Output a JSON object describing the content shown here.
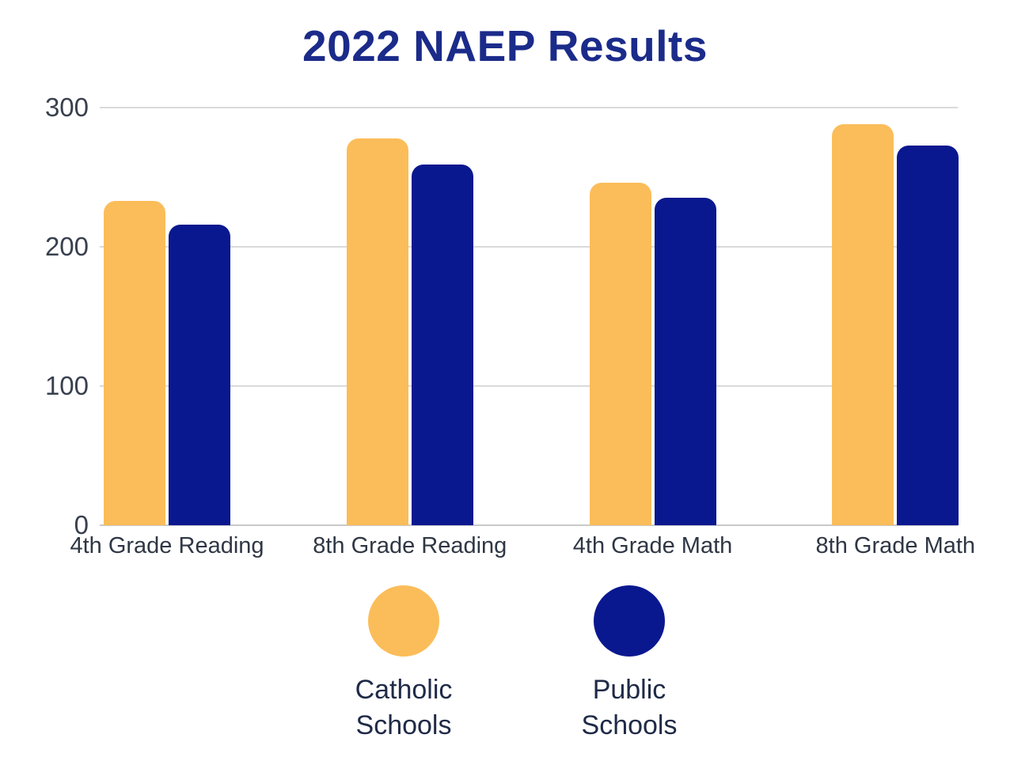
{
  "chart_data": {
    "type": "bar",
    "title": "2022 NAEP Results",
    "categories": [
      "4th Grade Reading",
      "8th Grade Reading",
      "4th Grade Math",
      "8th Grade Math"
    ],
    "series": [
      {
        "name": "Catholic Schools",
        "color": "#fbbd59",
        "values": [
          233,
          278,
          246,
          288
        ]
      },
      {
        "name": "Public Schools",
        "color": "#0a188f",
        "values": [
          216,
          259,
          235,
          273
        ]
      }
    ],
    "ylim": [
      0,
      300
    ],
    "yticks": [
      0,
      100,
      200,
      300
    ],
    "grid": true,
    "legend_position": "bottom",
    "legend": [
      {
        "line1": "Catholic",
        "line2": "Schools"
      },
      {
        "line1": "Public",
        "line2": "Schools"
      }
    ]
  },
  "colors": {
    "title": "#1b2b8a",
    "catholic_bar": "#fbbd59",
    "public_bar": "#0a188f",
    "gridline": "#dadada",
    "axis_text": "#39404e",
    "category_text": "#2f3744",
    "legend_text": "#1f2a47",
    "background": "#ffffff"
  }
}
